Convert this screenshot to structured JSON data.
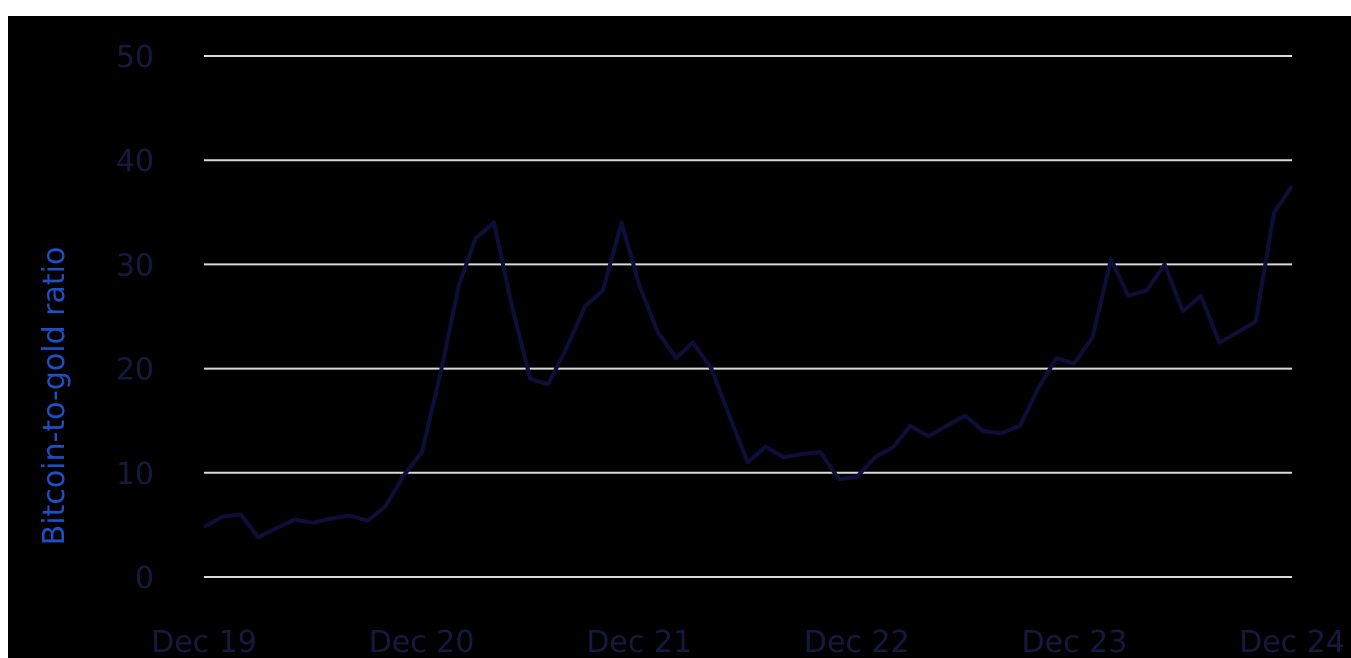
{
  "chart_data": {
    "type": "line",
    "title": "",
    "xlabel": "",
    "ylabel": "Bitcoin-to-gold ratio",
    "ylim": [
      0,
      50
    ],
    "yticks": [
      "0",
      "10",
      "20",
      "30",
      "40",
      "50"
    ],
    "xticks": [
      "Dec 19",
      "Dec 20",
      "Dec 21",
      "Dec 22",
      "Dec 23",
      "Dec 24"
    ],
    "grid": true,
    "colors": {
      "line": "#0d0f3a",
      "ylabel": "#1f4fc4",
      "ticks": "#141a3e",
      "grid": "#d9d9d9",
      "background": "#000000"
    },
    "series": [
      {
        "x": [
          "2019-12-01",
          "2020-01-01",
          "2020-02-01",
          "2020-03-01",
          "2020-04-01",
          "2020-05-01",
          "2020-06-01",
          "2020-07-01",
          "2020-08-01",
          "2020-09-01",
          "2020-10-01",
          "2020-11-01",
          "2020-12-01",
          "2021-01-01",
          "2021-02-01",
          "2021-03-01",
          "2021-04-01",
          "2021-05-01",
          "2021-06-01",
          "2021-07-01",
          "2021-08-01",
          "2021-09-01",
          "2021-10-01",
          "2021-11-01",
          "2021-12-01",
          "2022-01-01",
          "2022-02-01",
          "2022-03-01",
          "2022-04-01",
          "2022-05-01",
          "2022-06-01",
          "2022-07-01",
          "2022-08-01",
          "2022-09-01",
          "2022-10-01",
          "2022-11-01",
          "2022-12-01",
          "2023-01-01",
          "2023-02-01",
          "2023-03-01",
          "2023-04-01",
          "2023-05-01",
          "2023-06-01",
          "2023-07-01",
          "2023-08-01",
          "2023-09-01",
          "2023-10-01",
          "2023-11-01",
          "2023-12-01",
          "2024-01-01",
          "2024-02-01",
          "2024-03-01",
          "2024-04-01",
          "2024-05-01",
          "2024-06-01",
          "2024-07-01",
          "2024-08-01",
          "2024-09-01",
          "2024-10-01",
          "2024-11-01",
          "2024-12-01"
        ],
        "values": [
          4.8,
          5.8,
          6.0,
          3.8,
          4.7,
          5.5,
          5.2,
          5.6,
          5.9,
          5.4,
          6.8,
          9.8,
          12.0,
          19.5,
          28.0,
          32.5,
          34.0,
          26.0,
          19.0,
          18.5,
          22.0,
          26.0,
          27.5,
          34.0,
          28.0,
          23.5,
          21.0,
          22.5,
          20.0,
          15.5,
          11.0,
          12.5,
          11.5,
          11.8,
          12.0,
          9.4,
          9.6,
          11.5,
          12.5,
          14.5,
          13.5,
          14.5,
          15.5,
          14.0,
          13.8,
          14.5,
          18.0,
          21.0,
          20.5,
          23.0,
          30.5,
          27.0,
          27.5,
          30.0,
          25.5,
          27.0,
          22.5,
          23.5,
          24.5,
          35.0,
          37.5
        ]
      }
    ]
  }
}
